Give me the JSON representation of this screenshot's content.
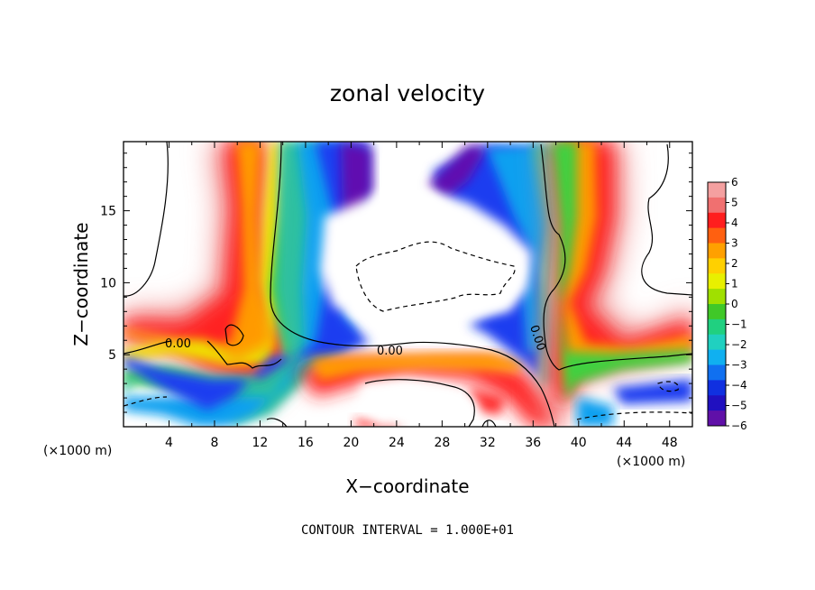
{
  "chart_data": {
    "type": "heatmap",
    "title": "zonal velocity",
    "xlabel": "X−coordinate",
    "ylabel": "Z−coordinate",
    "xunit_left": "(×1000 m)",
    "xunit_right": "(×1000 m)",
    "xlim": [
      0,
      50
    ],
    "ylim": [
      0,
      19.8
    ],
    "xticks": [
      4,
      8,
      12,
      16,
      20,
      24,
      28,
      32,
      36,
      40,
      44,
      48
    ],
    "xtick_labels": [
      "4",
      "8",
      "12",
      "16",
      "20",
      "24",
      "28",
      "32",
      "36",
      "40",
      "44",
      "48"
    ],
    "yticks": [
      5,
      10,
      15
    ],
    "ytick_labels": [
      "5",
      "10",
      "15"
    ],
    "colorbar": {
      "min": -6,
      "max": 6,
      "ticks": [
        6,
        5,
        4,
        3,
        2,
        1,
        0,
        -1,
        -2,
        -3,
        -4,
        -5,
        -6
      ],
      "tick_labels": [
        "6",
        "5",
        "4",
        "3",
        "2",
        "1",
        "0",
        "−1",
        "−2",
        "−3",
        "−4",
        "−5",
        "−6"
      ]
    },
    "contour_labels": [
      "0.00",
      "0.00",
      "0.00"
    ],
    "footnote": "CONTOUR INTERVAL = 1.000E+01",
    "grid": false,
    "features": [
      {
        "kind": "positive-jet",
        "path": [
          [
            10,
            19.8
          ],
          [
            10.5,
            12
          ],
          [
            9,
            7
          ],
          [
            4,
            5
          ],
          [
            0,
            7
          ]
        ],
        "peak": 6
      },
      {
        "kind": "positive-band",
        "path": [
          [
            14,
            2.5
          ],
          [
            22,
            5
          ],
          [
            32,
            5
          ],
          [
            38,
            3.5
          ]
        ],
        "peak": 6
      },
      {
        "kind": "negative-band",
        "path": [
          [
            17,
            19.8
          ],
          [
            17,
            12
          ],
          [
            22,
            6
          ],
          [
            30,
            5
          ],
          [
            36,
            6
          ]
        ],
        "peak": -6
      },
      {
        "kind": "negative-band",
        "path": [
          [
            30,
            18
          ],
          [
            34,
            14
          ],
          [
            36,
            10
          ],
          [
            37,
            6
          ]
        ],
        "peak": -6
      },
      {
        "kind": "positive-jet",
        "path": [
          [
            41,
            19.8
          ],
          [
            42,
            12
          ],
          [
            40,
            8
          ],
          [
            44,
            5
          ],
          [
            50,
            7
          ]
        ],
        "peak": 6
      }
    ]
  }
}
